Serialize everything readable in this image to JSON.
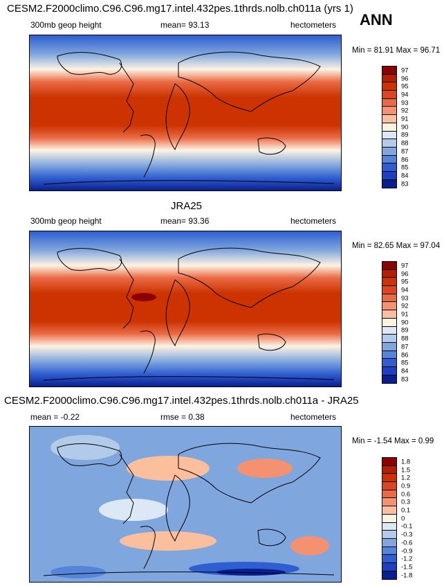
{
  "season": "ANN",
  "panels": [
    {
      "title": "CESM2.F2000climo.C96.C96.mg17.intel.432pes.1thrds.nolb.ch011a (yrs 1)",
      "variable": "300mb geop height",
      "mean_text": "mean=  93.13",
      "units": "hectometers",
      "minmax_text": "Min =  81.91 Max =  96.71",
      "levels": [
        "97",
        "96",
        "95",
        "94",
        "93",
        "92",
        "91",
        "90",
        "89",
        "88",
        "87",
        "86",
        "85",
        "84",
        "83"
      ],
      "colors": [
        "#8b0000",
        "#b22000",
        "#cc3300",
        "#dd4422",
        "#ea6a45",
        "#f39170",
        "#fbbf9e",
        "#fdf3e3",
        "#dce8f5",
        "#b2cbe8",
        "#7fa6dd",
        "#5585da",
        "#2f5ed2",
        "#1d3fc2",
        "#0a1f8f"
      ]
    },
    {
      "title": "JRA25",
      "variable": "300mb geop height",
      "mean_text": "mean=  93.36",
      "units": "hectometers",
      "minmax_text": "Min =  82.65 Max =  97.04",
      "levels": [
        "97",
        "96",
        "95",
        "94",
        "93",
        "92",
        "91",
        "90",
        "89",
        "88",
        "87",
        "86",
        "85",
        "84",
        "83"
      ],
      "colors": [
        "#8b0000",
        "#b22000",
        "#cc3300",
        "#dd4422",
        "#ea6a45",
        "#f39170",
        "#fbbf9e",
        "#fdf3e3",
        "#dce8f5",
        "#b2cbe8",
        "#7fa6dd",
        "#5585da",
        "#2f5ed2",
        "#1d3fc2",
        "#0a1f8f"
      ]
    },
    {
      "title": "CESM2.F2000climo.C96.C96.mg17.intel.432pes.1thrds.nolb.ch011a - JRA25",
      "variable": "mean =  -0.22",
      "mean_text": "rmse =   0.38",
      "units": "hectometers",
      "minmax_text": "Min =  -1.54 Max =   0.99",
      "levels": [
        "1.8",
        "1.5",
        "1.2",
        "0.9",
        "0.6",
        "0.3",
        "0.1",
        "0",
        "-0.1",
        "-0.3",
        "-0.6",
        "-0.9",
        "-1.2",
        "-1.5",
        "-1.8"
      ],
      "colors": [
        "#8b0000",
        "#b22000",
        "#cc3300",
        "#dd4422",
        "#ea6a45",
        "#f39170",
        "#fbbf9e",
        "#fdf3e3",
        "#dce8f5",
        "#b2cbe8",
        "#7fa6dd",
        "#5585da",
        "#2f5ed2",
        "#1d3fc2",
        "#0a1f8f"
      ]
    }
  ]
}
